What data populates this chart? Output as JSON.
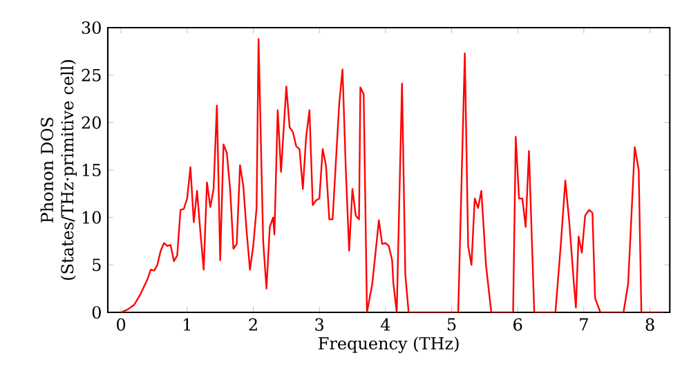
{
  "chart_data": {
    "type": "line",
    "xlabel": "Frequency (THz)",
    "ylabel": "Phonon DOS\n(States/THz·primitive cell)",
    "xlim": [
      -0.2,
      8.3
    ],
    "ylim": [
      0,
      30
    ],
    "xticks": [
      0,
      1,
      2,
      3,
      4,
      5,
      6,
      7,
      8
    ],
    "yticks": [
      0,
      5,
      10,
      15,
      20,
      25,
      30
    ],
    "grid": false,
    "marker": "none",
    "line_style": "solid",
    "series": [
      {
        "color": "#ff0000",
        "x": [
          0,
          0.1,
          0.2,
          0.3,
          0.4,
          0.45,
          0.5,
          0.55,
          0.6,
          0.65,
          0.7,
          0.75,
          0.8,
          0.85,
          0.9,
          0.95,
          1.0,
          1.05,
          1.1,
          1.15,
          1.2,
          1.25,
          1.3,
          1.35,
          1.4,
          1.45,
          1.5,
          1.55,
          1.6,
          1.65,
          1.7,
          1.75,
          1.8,
          1.85,
          1.9,
          1.95,
          2.0,
          2.05,
          2.08,
          2.15,
          2.2,
          2.25,
          2.3,
          2.32,
          2.37,
          2.42,
          2.5,
          2.55,
          2.6,
          2.65,
          2.7,
          2.75,
          2.8,
          2.85,
          2.9,
          2.95,
          3.0,
          3.05,
          3.1,
          3.15,
          3.2,
          3.3,
          3.35,
          3.4,
          3.45,
          3.5,
          3.55,
          3.6,
          3.62,
          3.67,
          3.72,
          3.8,
          3.9,
          3.95,
          4.0,
          4.05,
          4.1,
          4.12,
          4.17,
          4.25,
          4.3,
          4.35,
          5.1,
          5.2,
          5.25,
          5.3,
          5.35,
          5.4,
          5.45,
          5.52,
          5.6,
          5.93,
          5.97,
          6.02,
          6.07,
          6.12,
          6.17,
          6.25,
          6.57,
          6.65,
          6.72,
          6.78,
          6.85,
          6.88,
          6.92,
          6.97,
          7.02,
          7.08,
          7.13,
          7.17,
          7.25,
          7.6,
          7.67,
          7.77,
          7.83,
          7.87,
          8.2
        ],
        "values": [
          0,
          0.3,
          0.8,
          2,
          3.5,
          4.5,
          4.4,
          5,
          6.5,
          7.3,
          7,
          7.1,
          5.4,
          6,
          10.8,
          10.9,
          12,
          15.3,
          9.5,
          12.8,
          8.5,
          4.5,
          13.7,
          11.1,
          13,
          21.8,
          5.5,
          17.7,
          16.8,
          13,
          6.7,
          7.2,
          15.5,
          13.3,
          8.5,
          4.5,
          7,
          11,
          28.8,
          7.5,
          2.5,
          9,
          10,
          8.2,
          21.3,
          14.8,
          23.8,
          19.5,
          19,
          17.5,
          17.2,
          13,
          18.5,
          21.3,
          11.3,
          11.8,
          12,
          17.2,
          15.5,
          9.8,
          9.8,
          22,
          25.6,
          15,
          6.5,
          13,
          10.2,
          9.8,
          23.7,
          23,
          0,
          3,
          9.7,
          7.2,
          7.3,
          7,
          5.5,
          3,
          0,
          24.1,
          4,
          0,
          0,
          27.3,
          7,
          5,
          12,
          11,
          12.8,
          5,
          0,
          0,
          18.5,
          12,
          12,
          9,
          17,
          0,
          0,
          7,
          13.9,
          9.5,
          3,
          0.5,
          8,
          6.3,
          10.2,
          10.8,
          10.5,
          1.5,
          0,
          0,
          3,
          17.4,
          15,
          0,
          0
        ]
      }
    ]
  }
}
